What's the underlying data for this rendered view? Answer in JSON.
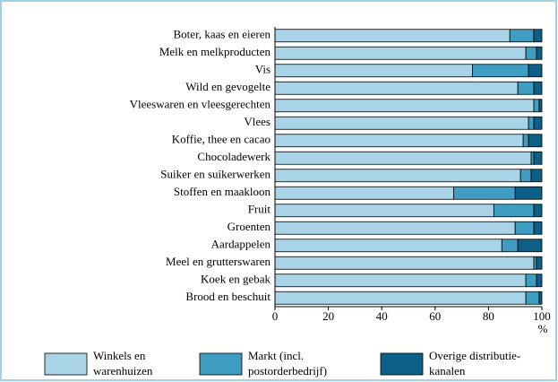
{
  "chart_data": {
    "type": "stacked-bar-horizontal",
    "categories": [
      "Boter, kaas en eieren",
      "Melk en melkproducten",
      "Vis",
      "Wild en gevogelte",
      "Vleeswaren en vleesgerechten",
      "Vlees",
      "Koffie, thee en cacao",
      "Chocoladewerk",
      "Suiker en suikerwerken",
      "Stoffen en maakloon",
      "Fruit",
      "Groenten",
      "Aardappelen",
      "Meel en grutterswaren",
      "Koek en gebak",
      "Brood en beschuit"
    ],
    "series": [
      {
        "name": "Winkels en\nwarenhuizen",
        "color": "#a9d3e6",
        "values": [
          88,
          94,
          74,
          91,
          97,
          95,
          93,
          96,
          92,
          67,
          82,
          90,
          85,
          97,
          94,
          94
        ]
      },
      {
        "name": "Markt (incl.\npostorderbedrijf)",
        "color": "#3f9dc1",
        "values": [
          9,
          4,
          21,
          6,
          2,
          2,
          2,
          1,
          4,
          23,
          15,
          7,
          6,
          1,
          4,
          5
        ]
      },
      {
        "name": "Overige distributie-\nkanalen",
        "color": "#0c5f87",
        "values": [
          3,
          2,
          5,
          3,
          1,
          3,
          5,
          3,
          4,
          10,
          3,
          3,
          9,
          2,
          2,
          1
        ]
      }
    ],
    "xlabel": "%",
    "xlim": [
      0,
      100
    ],
    "xticks": [
      0,
      20,
      40,
      60,
      80,
      100
    ]
  }
}
